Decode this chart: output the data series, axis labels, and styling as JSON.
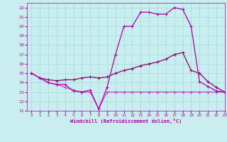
{
  "xlabel": "Windchill (Refroidissement éolien,°C)",
  "xlim": [
    -0.5,
    23
  ],
  "ylim": [
    11,
    22.5
  ],
  "xticks": [
    0,
    1,
    2,
    3,
    4,
    5,
    6,
    7,
    8,
    9,
    10,
    11,
    12,
    13,
    14,
    15,
    16,
    17,
    18,
    19,
    20,
    21,
    22,
    23
  ],
  "yticks": [
    11,
    12,
    13,
    14,
    15,
    16,
    17,
    18,
    19,
    20,
    21,
    22
  ],
  "background_color": "#caeef0",
  "grid_color": "#a8dde0",
  "line1_color": "#aa00aa",
  "line2_color": "#880066",
  "line3_color": "#cc44cc",
  "line1_x": [
    0,
    1,
    2,
    3,
    4,
    5,
    6,
    7,
    8,
    9,
    10,
    11,
    12,
    13,
    14,
    15,
    16,
    17,
    18,
    19,
    20,
    21,
    22,
    23
  ],
  "line1_y": [
    15.0,
    14.5,
    14.0,
    13.8,
    13.8,
    13.1,
    13.0,
    13.2,
    11.2,
    13.5,
    17.0,
    20.0,
    20.0,
    21.5,
    21.5,
    21.3,
    21.3,
    22.0,
    21.8,
    20.0,
    14.1,
    13.6,
    13.1,
    13.0
  ],
  "line2_x": [
    0,
    1,
    2,
    3,
    4,
    5,
    6,
    7,
    8,
    9,
    10,
    11,
    12,
    13,
    14,
    15,
    16,
    17,
    18,
    19,
    20,
    21,
    22,
    23
  ],
  "line2_y": [
    15.0,
    14.5,
    14.3,
    14.2,
    14.3,
    14.3,
    14.5,
    14.6,
    14.5,
    14.6,
    15.0,
    15.3,
    15.5,
    15.8,
    16.0,
    16.2,
    16.5,
    17.0,
    17.2,
    15.3,
    15.0,
    14.1,
    13.5,
    13.0
  ],
  "line3_x": [
    0,
    1,
    2,
    3,
    4,
    5,
    6,
    7,
    8,
    9,
    10,
    11,
    12,
    13,
    14,
    15,
    16,
    17,
    18,
    19,
    20,
    21,
    22,
    23
  ],
  "line3_y": [
    15.0,
    14.5,
    14.0,
    13.8,
    13.5,
    13.2,
    13.0,
    13.0,
    11.2,
    13.0,
    13.0,
    13.0,
    13.0,
    13.0,
    13.0,
    13.0,
    13.0,
    13.0,
    13.0,
    13.0,
    13.0,
    13.0,
    13.0,
    13.0
  ]
}
